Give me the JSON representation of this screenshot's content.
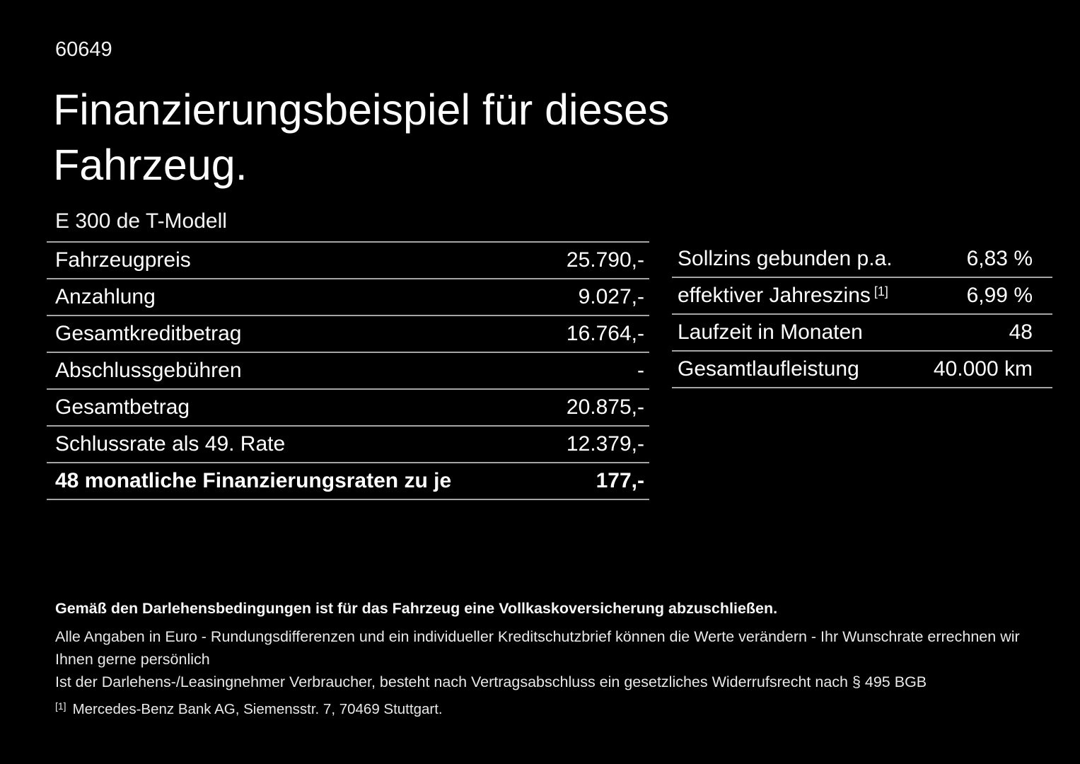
{
  "page": {
    "background": "#000000",
    "text_color": "#ffffff",
    "divider_color": "#a5a5a5"
  },
  "header": {
    "ref_number": "60649",
    "title_line1": "Finanzierungsbeispiel für dieses",
    "title_line2": "Fahrzeug.",
    "vehicle_model": "E 300 de T-Modell"
  },
  "finance_table": {
    "rows": [
      {
        "label": "Fahrzeugpreis",
        "value": "25.790,-"
      },
      {
        "label": "Anzahlung",
        "value": "9.027,-"
      },
      {
        "label": "Gesamtkreditbetrag",
        "value": "16.764,-"
      },
      {
        "label": "Abschlussgebühren",
        "value": "-"
      },
      {
        "label": "Gesamtbetrag",
        "value": "20.875,-"
      },
      {
        "label": "Schlussrate als 49. Rate",
        "value": "12.379,-"
      },
      {
        "label": "48 monatliche Finanzierungsraten zu je",
        "value": "177,-"
      }
    ]
  },
  "terms_table": {
    "rows": [
      {
        "label": "Sollzins gebunden p.a.",
        "sup": "",
        "value": "6,83 %"
      },
      {
        "label": "effektiver Jahreszins",
        "sup": "[1]",
        "value": "6,99 %"
      },
      {
        "label": "Laufzeit in Monaten",
        "sup": "",
        "value": "48"
      },
      {
        "label": "Gesamtlaufleistung",
        "sup": "",
        "value": "40.000 km"
      }
    ]
  },
  "footer": {
    "insurance_note": "Gemäß den Darlehensbedingungen ist für das Fahrzeug eine Vollkaskoversicherung abzuschließen.",
    "note_line1": "Alle Angaben in Euro - Rundungsdifferenzen und ein individueller Kreditschutzbrief können die Werte verändern - Ihr Wunschrate errechnen wir Ihnen gerne persönlich",
    "note_line2": "Ist der Darlehens-/Leasingnehmer Verbraucher, besteht nach Vertragsabschluss ein gesetzliches Widerrufsrecht nach § 495 BGB",
    "footnote_marker": "[1]",
    "footnote_text": "Mercedes-Benz Bank AG, Siemensstr. 7, 70469 Stuttgart."
  }
}
